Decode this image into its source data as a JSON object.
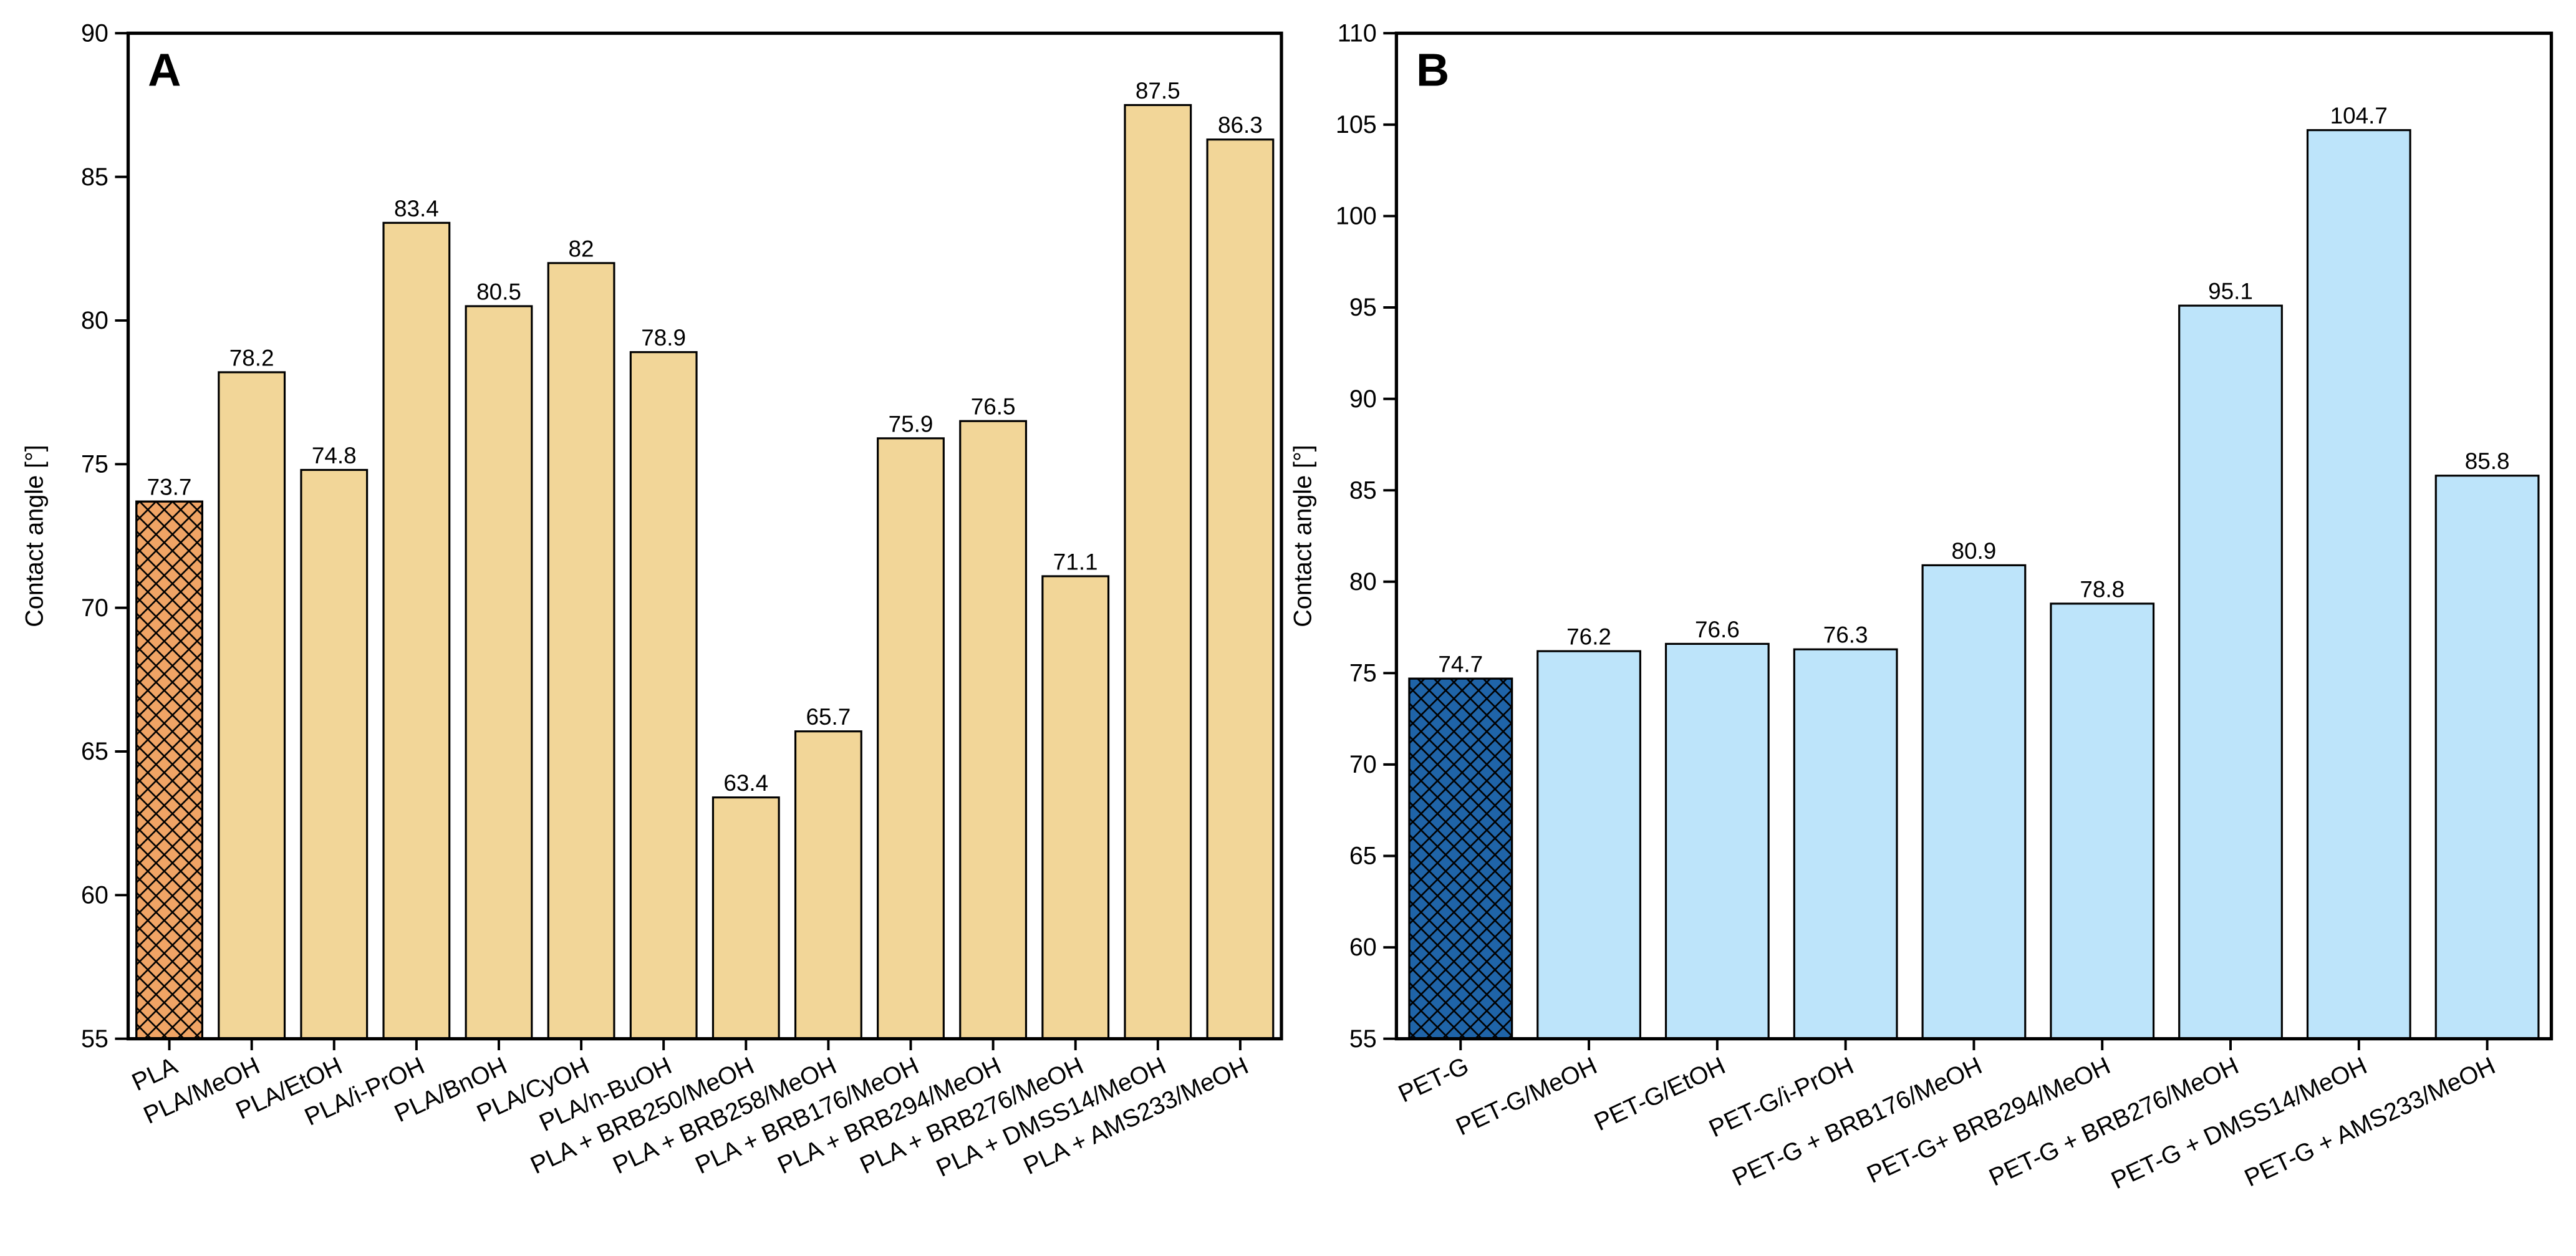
{
  "chart_data": [
    {
      "type": "bar",
      "label": "A",
      "y_label": "Contact angle [°]",
      "categories": [
        "PLA",
        "PLA/MeOH",
        "PLA/EtOH",
        "PLA/i-PrOH",
        "PLA/BnOH",
        "PLA/CyOH",
        "PLA/n-BuOH",
        "PLA + BRB250/MeOH",
        "PLA + BRB258/MeOH",
        "PLA + BRB176/MeOH",
        "PLA + BRB294/MeOH",
        "PLA + BRB276/MeOH",
        "PLA + DMSS14/MeOH",
        "PLA + AMS233/MeOH"
      ],
      "values": [
        73.7,
        78.2,
        74.8,
        83.4,
        80.5,
        82,
        78.9,
        63.4,
        65.7,
        75.9,
        76.5,
        71.1,
        87.5,
        86.3
      ],
      "colors": [
        "#f0a465",
        "#f2d698",
        "#f2d698",
        "#f2d698",
        "#f2d698",
        "#f2d698",
        "#f2d698",
        "#f2d698",
        "#f2d698",
        "#f2d698",
        "#f2d698",
        "#f2d698",
        "#f2d698",
        "#f2d698"
      ],
      "hatched": [
        true,
        false,
        false,
        false,
        false,
        false,
        false,
        false,
        false,
        false,
        false,
        false,
        false,
        false
      ],
      "ylim": [
        55,
        90
      ],
      "yticks": [
        55,
        60,
        65,
        70,
        75,
        80,
        85,
        90
      ]
    },
    {
      "type": "bar",
      "label": "B",
      "y_label": "Contact angle [°]",
      "categories": [
        "PET-G",
        "PET-G/MeOH",
        "PET-G/EtOH",
        "PET-G/i-PrOH",
        "PET-G + BRB176/MeOH",
        "PET-G+ BRB294/MeOH",
        "PET-G + BRB276/MeOH",
        "PET-G + DMSS14/MeOH",
        "PET-G + AMS233/MeOH"
      ],
      "values": [
        74.7,
        76.2,
        76.6,
        76.3,
        80.9,
        78.8,
        95.1,
        104.7,
        85.8
      ],
      "colors": [
        "#1f64a8",
        "#bde4fa",
        "#bde4fa",
        "#bde4fa",
        "#bde4fa",
        "#bde4fa",
        "#bde4fa",
        "#bde4fa",
        "#bde4fa"
      ],
      "hatched": [
        true,
        false,
        false,
        false,
        false,
        false,
        false,
        false,
        false
      ],
      "ylim": [
        55,
        110
      ],
      "yticks": [
        55,
        60,
        65,
        70,
        75,
        80,
        85,
        90,
        95,
        100,
        105,
        110
      ]
    }
  ]
}
